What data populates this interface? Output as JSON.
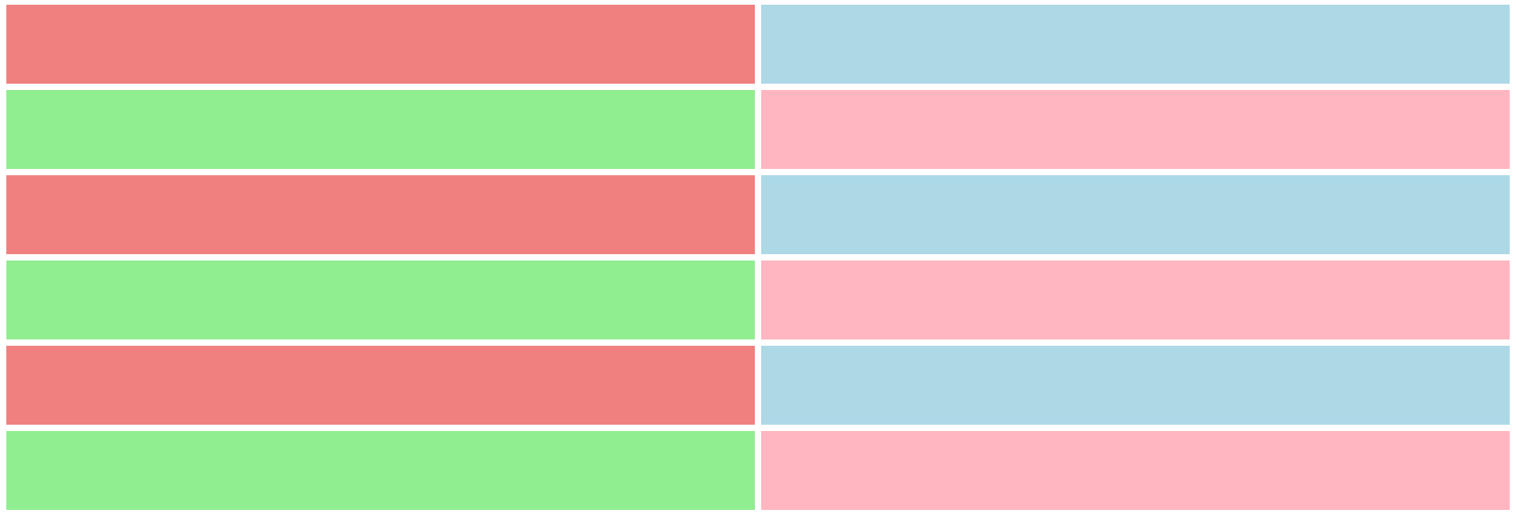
{
  "colors": {
    "lightcoral": "#F08080",
    "lightgreen": "#90EE90",
    "lightblue": "#ADD8E6",
    "lightpink": "#FFB6C1",
    "background": "#FFFFFF"
  },
  "grid": {
    "rows": 6,
    "columns": 2,
    "cells": [
      {
        "color": "#F08080"
      },
      {
        "color": "#ADD8E6"
      },
      {
        "color": "#90EE90"
      },
      {
        "color": "#FFB6C1"
      },
      {
        "color": "#F08080"
      },
      {
        "color": "#ADD8E6"
      },
      {
        "color": "#90EE90"
      },
      {
        "color": "#FFB6C1"
      },
      {
        "color": "#F08080"
      },
      {
        "color": "#ADD8E6"
      },
      {
        "color": "#90EE90"
      },
      {
        "color": "#FFB6C1"
      }
    ]
  }
}
